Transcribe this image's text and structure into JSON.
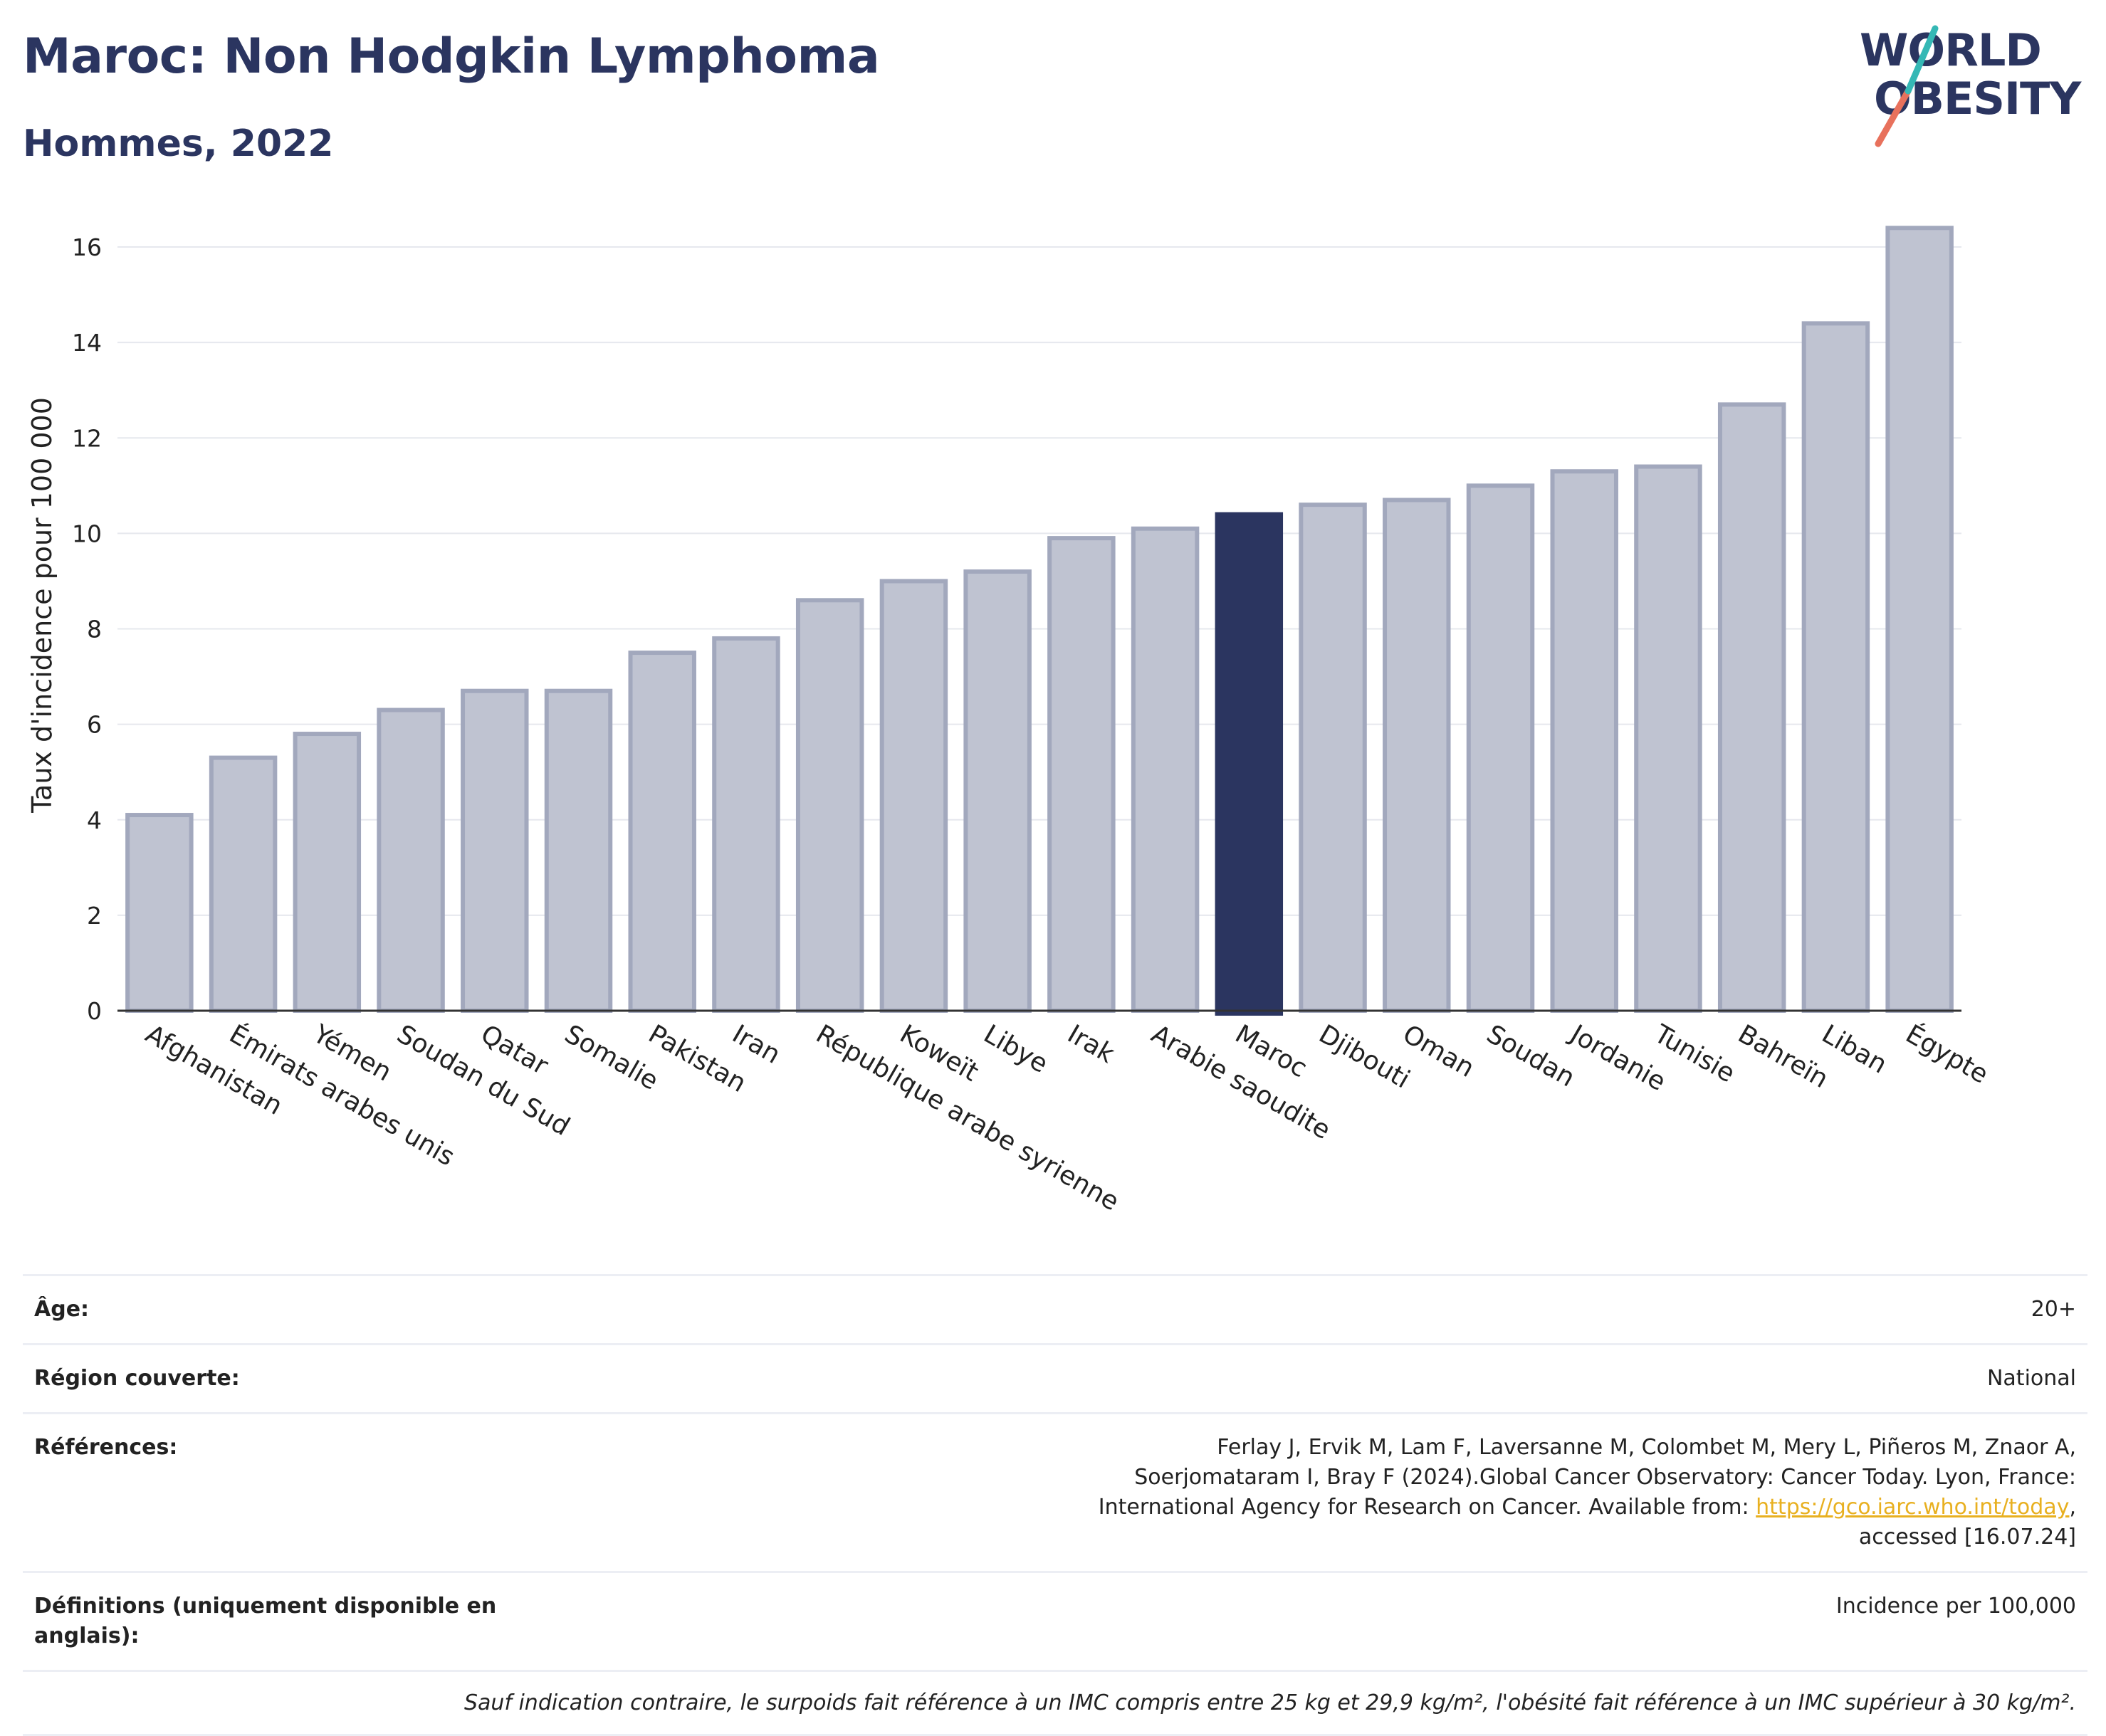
{
  "header": {
    "title": "Maroc: Non Hodgkin Lymphoma",
    "subtitle": "Hommes, 2022",
    "logo_line1": "WORLD",
    "logo_line2": "OBESITY"
  },
  "colors": {
    "bar": "#bfc3d1",
    "bar_border": "#a2a8bd",
    "highlight": "#2b3560",
    "title": "#2b3560",
    "link": "#e8b020"
  },
  "chart_data": {
    "type": "bar",
    "title": "Maroc: Non Hodgkin Lymphoma",
    "subtitle": "Hommes, 2022",
    "xlabel": "",
    "ylabel": "Taux d'incidence pour 100 000",
    "ylim": [
      0,
      17
    ],
    "yticks": [
      0,
      2,
      4,
      6,
      8,
      10,
      12,
      14,
      16
    ],
    "grid": true,
    "highlight": "Maroc",
    "categories": [
      "Afghanistan",
      "Émirats arabes unis",
      "Yémen",
      "Soudan du Sud",
      "Qatar",
      "Somalie",
      "Pakistan",
      "Iran",
      "République arabe syrienne",
      "Koweït",
      "Libye",
      "Irak",
      "Arabie saoudite",
      "Maroc",
      "Djibouti",
      "Oman",
      "Soudan",
      "Jordanie",
      "Tunisie",
      "Bahreïn",
      "Liban",
      "Égypte"
    ],
    "values": [
      4.1,
      5.3,
      5.8,
      6.3,
      6.7,
      6.7,
      7.5,
      7.8,
      8.6,
      9.0,
      9.2,
      9.9,
      10.1,
      10.4,
      10.6,
      10.7,
      11.0,
      11.3,
      11.4,
      12.7,
      14.4,
      16.4
    ]
  },
  "info": {
    "age_label": "Âge:",
    "age_value": "20+",
    "region_label": "Région couverte:",
    "region_value": "National",
    "refs_label": "Références:",
    "refs_text_1": "Ferlay J, Ervik M, Lam F, Laversanne M, Colombet M, Mery L, Piñeros M, Znaor A, Soerjomataram I, Bray F (2024).Global Cancer Observatory: Cancer Today. Lyon, France: International Agency for Research on Cancer. Available from: ",
    "refs_link": "https://gco.iarc.who.int/today",
    "refs_text_2": ", accessed [16.07.24]",
    "defs_label": "Définitions (uniquement disponible en anglais):",
    "defs_value": "Incidence per 100,000",
    "note": "Sauf indication contraire, le surpoids fait référence à un IMC compris entre 25 kg et 29,9 kg/m², l'obésité fait référence à un IMC supérieur à 30 kg/m²."
  }
}
